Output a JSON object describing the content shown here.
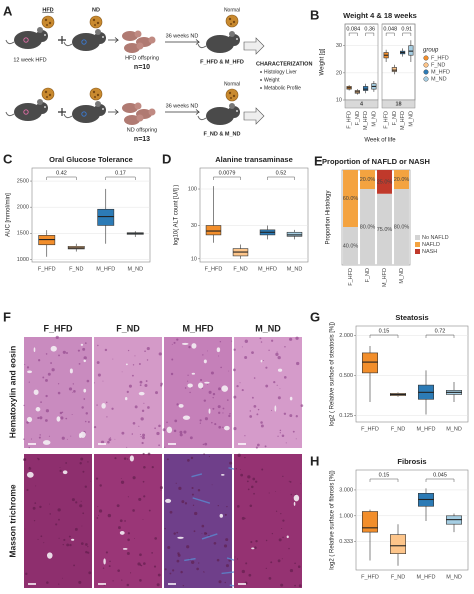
{
  "diagram": {
    "panel": "A",
    "diets": [
      "HFD",
      "ND"
    ],
    "mother_treatment": "12 week HFD",
    "rows": [
      {
        "offspring": "HFD offspring",
        "n": "n=10",
        "treatment": "36 weeks ND",
        "diet": "Normal",
        "groups": "F_HFD & M_HFD"
      },
      {
        "offspring": "ND offspring",
        "n": "n=13",
        "treatment": "36 weeks ND",
        "diet": "Normal",
        "groups": "F_ND & M_ND"
      }
    ],
    "characterization": {
      "title": "CHARACTERIZATION",
      "items": [
        "Histology Liver",
        "Weight",
        "Metabolic Profile"
      ]
    }
  },
  "histology": {
    "panel": "F",
    "columns": [
      "F_HFD",
      "F_ND",
      "M_HFD",
      "M_ND"
    ],
    "stains": [
      "Hematoxylin and eosin",
      "Masson trichrome"
    ]
  },
  "chart_data": [
    {
      "type": "box",
      "panel": "B",
      "title": "Weight 4 & 18 weeks",
      "ylabel": "Weight [g]",
      "xlabel": "Week of life",
      "ylim": [
        10,
        38
      ],
      "yticks": [
        10,
        20,
        30
      ],
      "grid": true,
      "categories": [
        "F_HFD",
        "F_ND",
        "M_HFD",
        "M_ND"
      ],
      "colors": [
        "#f28e2b",
        "#fdc58a",
        "#2c7bb6",
        "#a6cee3"
      ],
      "legend_title": "group",
      "legend_position": "right",
      "facets": [
        {
          "label": "4",
          "annotations": [
            "0.084",
            "0.36"
          ],
          "values": [
            [
              13.5,
              14,
              14.5,
              15,
              15.5
            ],
            [
              12,
              12.5,
              13,
              13.5,
              14
            ],
            [
              12.5,
              13.5,
              14,
              15,
              16
            ],
            [
              13,
              14,
              15,
              16,
              17
            ]
          ]
        },
        {
          "label": "18",
          "annotations": [
            "0.048",
            "0.91"
          ],
          "values": [
            [
              24,
              25.5,
              26.5,
              27.5,
              28.5
            ],
            [
              19.5,
              20.5,
              21,
              22,
              23
            ],
            [
              26,
              27,
              27.5,
              28,
              29
            ],
            [
              24,
              26.5,
              28,
              30,
              32
            ]
          ]
        }
      ]
    },
    {
      "type": "box",
      "panel": "C",
      "title": "Oral Glucose Tolerance",
      "ylabel": "AUC [mmol/min]",
      "ylim": [
        950,
        2750
      ],
      "yticks": [
        1000,
        1500,
        2000,
        2500
      ],
      "grid": true,
      "categories": [
        "F_HFD",
        "F_ND",
        "M_HFD",
        "M_ND"
      ],
      "colors": [
        "#f28e2b",
        "#fdc58a",
        "#2c7bb6",
        "#a6cee3"
      ],
      "annotations": [
        "0.42",
        "0.17"
      ],
      "values": [
        [
          1050,
          1280,
          1380,
          1460,
          1560
        ],
        [
          1150,
          1200,
          1220,
          1250,
          1300
        ],
        [
          1300,
          1650,
          1820,
          1960,
          2350
        ],
        [
          1430,
          1480,
          1500,
          1510,
          1540
        ]
      ]
    },
    {
      "type": "box",
      "panel": "D",
      "title": "Alanine transaminase",
      "ylabel": "log10( ALT count [U/l] )",
      "yscale": "log",
      "ylim": [
        9,
        200
      ],
      "yticks": [
        10,
        30,
        100
      ],
      "grid": true,
      "categories": [
        "F_HFD",
        "F_ND",
        "M_HFD",
        "M_ND"
      ],
      "colors": [
        "#f28e2b",
        "#fdc58a",
        "#2c7bb6",
        "#a6cee3"
      ],
      "annotations": [
        "0.0079",
        "0.52"
      ],
      "values": [
        [
          17,
          22,
          25,
          30,
          110
        ],
        [
          10,
          11,
          12.5,
          14,
          16
        ],
        [
          19,
          22,
          24,
          26,
          30
        ],
        [
          19,
          21,
          22,
          24,
          26
        ]
      ]
    },
    {
      "type": "stacked_bar",
      "panel": "E",
      "title": "Proportion of NAFLD or NASH",
      "ylabel": "Proportion Histology",
      "ylim": [
        0,
        100
      ],
      "legend_position": "right",
      "categories": [
        "F_HFD",
        "F_ND",
        "M_HFD",
        "M_ND"
      ],
      "series": [
        {
          "name": "No NAFLD",
          "color": "#d3d3d3",
          "values": [
            40,
            80,
            75,
            80
          ],
          "value_labels": [
            "40.0%",
            "80.0%",
            "75.0%",
            "80.0%"
          ]
        },
        {
          "name": "NAFLD",
          "color": "#f4a340",
          "values": [
            60,
            20,
            0,
            20
          ],
          "value_labels": [
            "60.0%",
            "20.0%",
            null,
            "20.0%"
          ]
        },
        {
          "name": "NASH",
          "color": "#c0392b",
          "values": [
            0,
            0,
            25,
            0
          ],
          "value_labels": [
            null,
            null,
            "25.0%",
            null
          ]
        }
      ]
    },
    {
      "type": "box",
      "panel": "G",
      "title": "Steatosis",
      "ylabel": "log2 ( Relative surface of steatosis [%])",
      "yscale": "log",
      "ylim": [
        0.1,
        2.8
      ],
      "yticks": [
        {
          "value": 2,
          "label": "2.000"
        },
        {
          "value": 0.5,
          "label": "0.500"
        },
        0.125
      ],
      "grid": true,
      "categories": [
        "F_HFD",
        "F_ND",
        "M_HFD",
        "M_ND"
      ],
      "colors": [
        "#f28e2b",
        "#fdc58a",
        "#2c7bb6",
        "#a6cee3"
      ],
      "annotations": [
        "0.15",
        "0.72"
      ],
      "values": [
        [
          0.2,
          0.55,
          0.8,
          1.1,
          1.4
        ],
        [
          0.24,
          0.25,
          0.26,
          0.27,
          0.28
        ],
        [
          0.13,
          0.22,
          0.28,
          0.36,
          0.6
        ],
        [
          0.2,
          0.26,
          0.28,
          0.3,
          0.4
        ]
      ]
    },
    {
      "type": "box",
      "panel": "H",
      "title": "Fibrosis",
      "ylabel": "log2 ( Relative surface of fibrosis [%])",
      "yscale": "log",
      "ylim": [
        0.1,
        7
      ],
      "yticks": [
        {
          "value": 3,
          "label": "3.000"
        },
        {
          "value": 1,
          "label": "1.000"
        },
        0.333
      ],
      "grid": true,
      "categories": [
        "F_HFD",
        "F_ND",
        "M_HFD",
        "M_ND"
      ],
      "colors": [
        "#f28e2b",
        "#fdc58a",
        "#2c7bb6",
        "#a6cee3"
      ],
      "annotations": [
        "0.15",
        "0.045"
      ],
      "values": [
        [
          0.15,
          0.5,
          0.6,
          1.2,
          1.3
        ],
        [
          0.12,
          0.2,
          0.28,
          0.45,
          0.7
        ],
        [
          0.8,
          1.5,
          2.0,
          2.6,
          3.2
        ],
        [
          0.5,
          0.7,
          0.85,
          1.0,
          1.1
        ]
      ]
    }
  ]
}
